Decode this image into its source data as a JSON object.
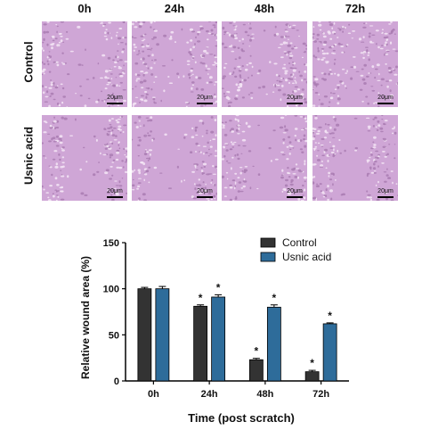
{
  "figure": {
    "timepoints": [
      "0h",
      "24h",
      "48h",
      "72h"
    ],
    "conditions": [
      "Control",
      "Usnic acid"
    ],
    "scale_label": "20μm",
    "panel_color": "#cfa6d6"
  },
  "chart_data": {
    "type": "bar",
    "categories": [
      "0h",
      "24h",
      "48h",
      "72h"
    ],
    "series": [
      {
        "name": "Control",
        "values": [
          100,
          81,
          23,
          10
        ],
        "errors": [
          1.5,
          1.5,
          1.5,
          1.5
        ],
        "color": "#333333",
        "significance": [
          "",
          "*",
          "*",
          "*"
        ]
      },
      {
        "name": "Usnic acid",
        "values": [
          100,
          91,
          80,
          62
        ],
        "errors": [
          2.5,
          2.5,
          2.5,
          1
        ],
        "color": "#2e6c9a",
        "significance": [
          "",
          "*",
          "*",
          "*"
        ]
      }
    ],
    "title": "",
    "xlabel": "Time (post scratch)",
    "ylabel": "Relative wound area (%)",
    "ylim": [
      0,
      150
    ],
    "yticks": [
      0,
      50,
      100,
      150
    ],
    "legend_position": "top-right"
  }
}
